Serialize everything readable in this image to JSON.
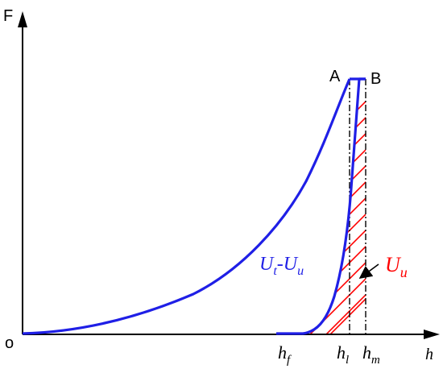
{
  "axes": {
    "y_label": "F",
    "x_label": "h",
    "origin_label": "o"
  },
  "points": {
    "a": "A",
    "b": "B"
  },
  "ticks": {
    "hf": {
      "base": "h",
      "sub": "f"
    },
    "hl": {
      "base": "h",
      "sub": "l"
    },
    "hm": {
      "base": "h",
      "sub": "m"
    }
  },
  "regions": {
    "loading_label": {
      "base1": "U",
      "sub1": "t",
      "dash": "-",
      "base2": "U",
      "sub2": "u"
    },
    "unloading_label": {
      "base": "U",
      "sub": "u"
    }
  },
  "colors": {
    "curve": "#1f1fe6",
    "hatch": "#ff0000",
    "axis": "#000000",
    "u_label": "#ff0000",
    "ut_label": "#1f1fe6"
  }
}
